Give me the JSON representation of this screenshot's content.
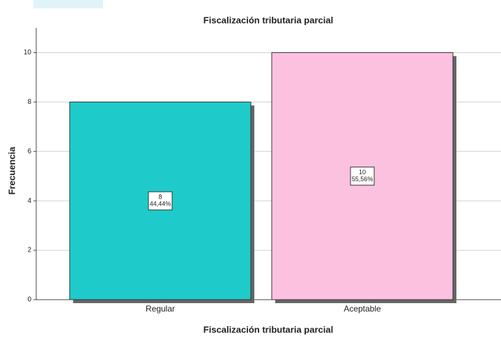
{
  "chart_data": {
    "type": "bar",
    "title": "Fiscalización tributaria parcial",
    "x_label": "Fiscalización tributaria parcial",
    "y_label": "Frecuencia",
    "categories": [
      "Regular",
      "Aceptable"
    ],
    "values": [
      8,
      10
    ],
    "percent_labels": [
      "44,44%",
      "55,56%"
    ],
    "colors": [
      "#1fcaca",
      "#fdc1e0"
    ],
    "ylim": [
      0,
      11
    ],
    "yticks": [
      0,
      2,
      4,
      6,
      8,
      10
    ],
    "grid": true
  }
}
